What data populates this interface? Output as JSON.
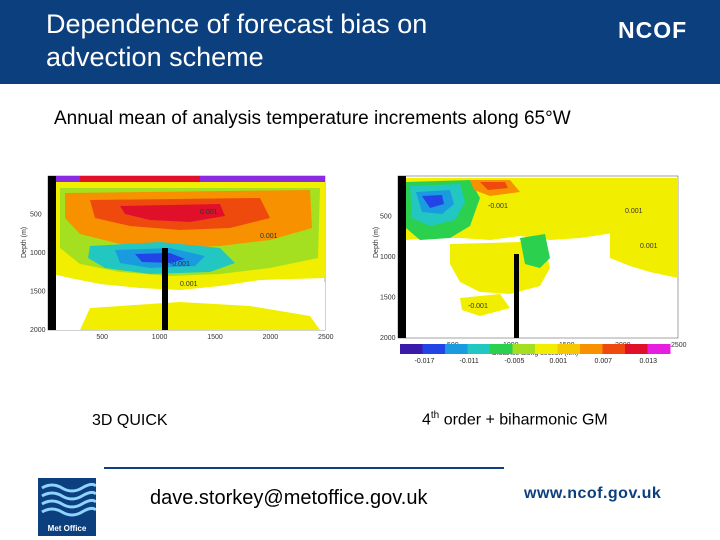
{
  "header": {
    "title": "Dependence of forecast bias on\nadvection scheme",
    "brand": "NCOF",
    "bg_color": "#0b3f7d"
  },
  "subtitle": "Annual mean of analysis temperature increments along 65°W",
  "chart_data": [
    {
      "type": "heatmap",
      "title": "3D QUICK",
      "xlabel": "",
      "ylabel": "Depth (m)",
      "xlim": [
        0,
        2500
      ],
      "ylim": [
        2000,
        0
      ],
      "x_ticks": [
        "500",
        "1000",
        "1500",
        "2000",
        "2500"
      ],
      "y_ticks": [
        "500",
        "1000",
        "1500",
        "2000"
      ],
      "contour_labels": [
        "0.001",
        "0.001",
        "-0.001",
        "0.001"
      ]
    },
    {
      "type": "heatmap",
      "title": "4th order + biharmonic GM",
      "xlabel": "Distance along section (km)",
      "ylabel": "Depth (m)",
      "xlim": [
        0,
        2500
      ],
      "ylim": [
        2000,
        0
      ],
      "x_ticks": [
        "500",
        "1000",
        "1500",
        "2000",
        "2500"
      ],
      "y_ticks": [
        "500",
        "1000",
        "1500",
        "2000"
      ],
      "contour_labels": [
        "-0.001",
        "0.001",
        "0.001",
        "-0.001"
      ],
      "colorbar": {
        "ticks": [
          "-0.017",
          "-0.011",
          "-0.005",
          "0.001",
          "0.007",
          "0.013"
        ],
        "colors": [
          "#3a1aa8",
          "#2244e6",
          "#1a9be0",
          "#22c7c2",
          "#2bd14e",
          "#a5e020",
          "#f2ee00",
          "#f6c800",
          "#f79100",
          "#ef4a0e",
          "#e0102a",
          "#e61ee0"
        ]
      }
    }
  ],
  "captions": {
    "left": "3D QUICK",
    "right_prefix": "4",
    "right_sup": "th",
    "right_suffix": " order + biharmonic GM"
  },
  "footer": {
    "email": "dave.storkey@metoffice.gov.uk",
    "website": "www.ncof.gov.uk",
    "logo_text": "Met Office"
  }
}
